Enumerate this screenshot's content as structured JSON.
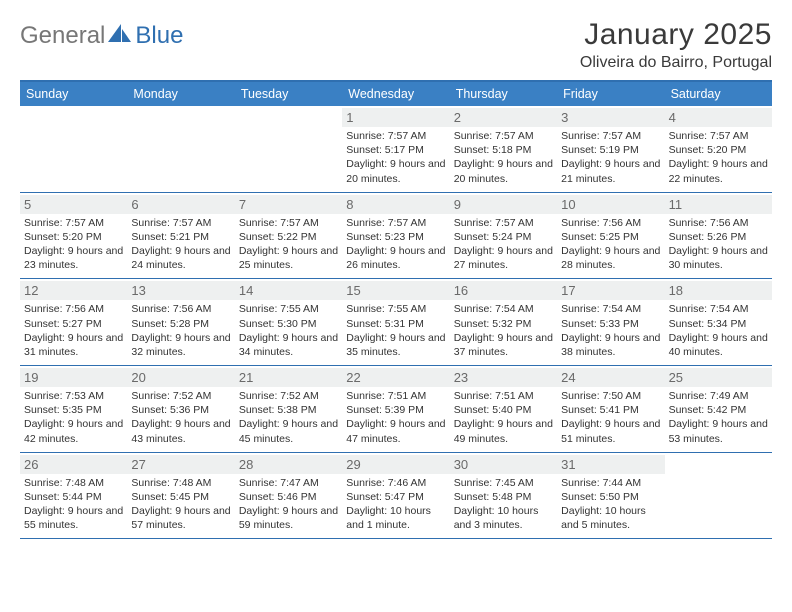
{
  "brand": {
    "word1": "General",
    "word2": "Blue"
  },
  "title": "January 2025",
  "location": "Oliveira do Bairro, Portugal",
  "colors": {
    "header_bg": "#3a80c4",
    "border": "#2f6fb0",
    "daynum_bg": "#eef0f0",
    "text": "#333333"
  },
  "day_headers": [
    "Sunday",
    "Monday",
    "Tuesday",
    "Wednesday",
    "Thursday",
    "Friday",
    "Saturday"
  ],
  "weeks": [
    [
      null,
      null,
      null,
      {
        "n": "1",
        "sr": "7:57 AM",
        "ss": "5:17 PM",
        "dl": "9 hours and 20 minutes."
      },
      {
        "n": "2",
        "sr": "7:57 AM",
        "ss": "5:18 PM",
        "dl": "9 hours and 20 minutes."
      },
      {
        "n": "3",
        "sr": "7:57 AM",
        "ss": "5:19 PM",
        "dl": "9 hours and 21 minutes."
      },
      {
        "n": "4",
        "sr": "7:57 AM",
        "ss": "5:20 PM",
        "dl": "9 hours and 22 minutes."
      }
    ],
    [
      {
        "n": "5",
        "sr": "7:57 AM",
        "ss": "5:20 PM",
        "dl": "9 hours and 23 minutes."
      },
      {
        "n": "6",
        "sr": "7:57 AM",
        "ss": "5:21 PM",
        "dl": "9 hours and 24 minutes."
      },
      {
        "n": "7",
        "sr": "7:57 AM",
        "ss": "5:22 PM",
        "dl": "9 hours and 25 minutes."
      },
      {
        "n": "8",
        "sr": "7:57 AM",
        "ss": "5:23 PM",
        "dl": "9 hours and 26 minutes."
      },
      {
        "n": "9",
        "sr": "7:57 AM",
        "ss": "5:24 PM",
        "dl": "9 hours and 27 minutes."
      },
      {
        "n": "10",
        "sr": "7:56 AM",
        "ss": "5:25 PM",
        "dl": "9 hours and 28 minutes."
      },
      {
        "n": "11",
        "sr": "7:56 AM",
        "ss": "5:26 PM",
        "dl": "9 hours and 30 minutes."
      }
    ],
    [
      {
        "n": "12",
        "sr": "7:56 AM",
        "ss": "5:27 PM",
        "dl": "9 hours and 31 minutes."
      },
      {
        "n": "13",
        "sr": "7:56 AM",
        "ss": "5:28 PM",
        "dl": "9 hours and 32 minutes."
      },
      {
        "n": "14",
        "sr": "7:55 AM",
        "ss": "5:30 PM",
        "dl": "9 hours and 34 minutes."
      },
      {
        "n": "15",
        "sr": "7:55 AM",
        "ss": "5:31 PM",
        "dl": "9 hours and 35 minutes."
      },
      {
        "n": "16",
        "sr": "7:54 AM",
        "ss": "5:32 PM",
        "dl": "9 hours and 37 minutes."
      },
      {
        "n": "17",
        "sr": "7:54 AM",
        "ss": "5:33 PM",
        "dl": "9 hours and 38 minutes."
      },
      {
        "n": "18",
        "sr": "7:54 AM",
        "ss": "5:34 PM",
        "dl": "9 hours and 40 minutes."
      }
    ],
    [
      {
        "n": "19",
        "sr": "7:53 AM",
        "ss": "5:35 PM",
        "dl": "9 hours and 42 minutes."
      },
      {
        "n": "20",
        "sr": "7:52 AM",
        "ss": "5:36 PM",
        "dl": "9 hours and 43 minutes."
      },
      {
        "n": "21",
        "sr": "7:52 AM",
        "ss": "5:38 PM",
        "dl": "9 hours and 45 minutes."
      },
      {
        "n": "22",
        "sr": "7:51 AM",
        "ss": "5:39 PM",
        "dl": "9 hours and 47 minutes."
      },
      {
        "n": "23",
        "sr": "7:51 AM",
        "ss": "5:40 PM",
        "dl": "9 hours and 49 minutes."
      },
      {
        "n": "24",
        "sr": "7:50 AM",
        "ss": "5:41 PM",
        "dl": "9 hours and 51 minutes."
      },
      {
        "n": "25",
        "sr": "7:49 AM",
        "ss": "5:42 PM",
        "dl": "9 hours and 53 minutes."
      }
    ],
    [
      {
        "n": "26",
        "sr": "7:48 AM",
        "ss": "5:44 PM",
        "dl": "9 hours and 55 minutes."
      },
      {
        "n": "27",
        "sr": "7:48 AM",
        "ss": "5:45 PM",
        "dl": "9 hours and 57 minutes."
      },
      {
        "n": "28",
        "sr": "7:47 AM",
        "ss": "5:46 PM",
        "dl": "9 hours and 59 minutes."
      },
      {
        "n": "29",
        "sr": "7:46 AM",
        "ss": "5:47 PM",
        "dl": "10 hours and 1 minute."
      },
      {
        "n": "30",
        "sr": "7:45 AM",
        "ss": "5:48 PM",
        "dl": "10 hours and 3 minutes."
      },
      {
        "n": "31",
        "sr": "7:44 AM",
        "ss": "5:50 PM",
        "dl": "10 hours and 5 minutes."
      },
      null
    ]
  ],
  "labels": {
    "sunrise": "Sunrise:",
    "sunset": "Sunset:",
    "daylight": "Daylight:"
  }
}
